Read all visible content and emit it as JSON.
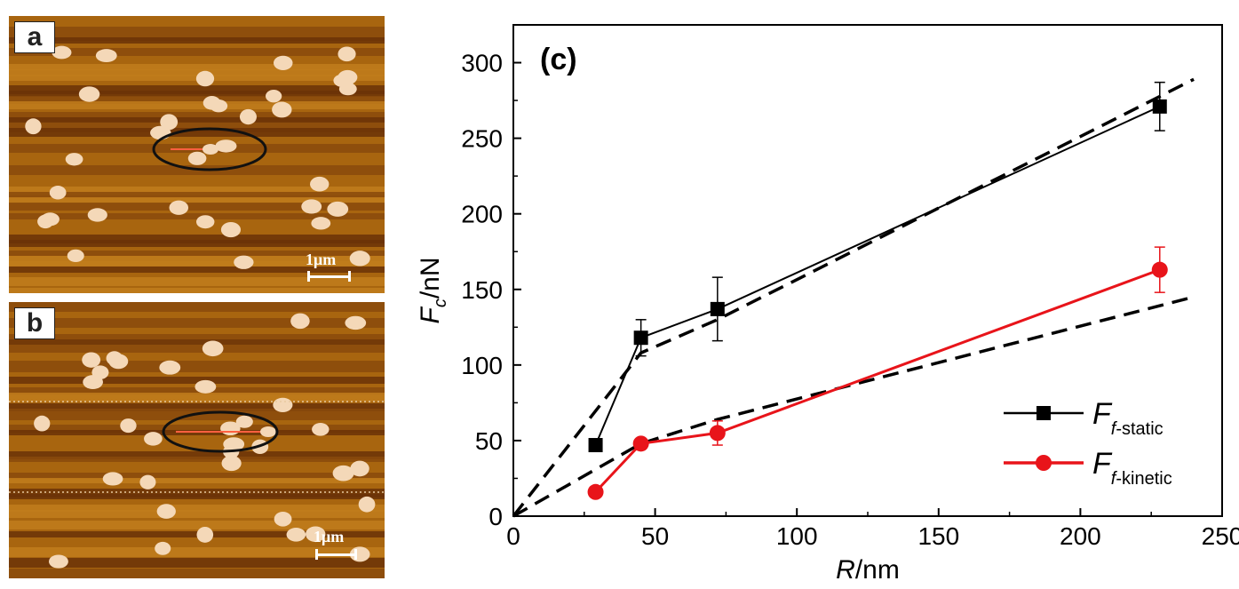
{
  "afm_panels": [
    {
      "label": "a",
      "scale_label": "1μm"
    },
    {
      "label": "b",
      "scale_label": "1μm"
    }
  ],
  "colors": {
    "afm_base": "#a8650f",
    "afm_dark": "#6b3207",
    "particle": "#f4d8b8",
    "static_series": "#000000",
    "kinetic_series": "#e8141a"
  },
  "chart_data": {
    "type": "line",
    "panel_label": "(c)",
    "xlabel": "R/nm",
    "xlabel_parts": {
      "var": "R",
      "unit": "/nm"
    },
    "ylabel": "F_c/nN",
    "ylabel_parts": {
      "var": "F",
      "sub": "c",
      "unit": "/nN"
    },
    "xlim": [
      0,
      250
    ],
    "ylim": [
      0,
      325
    ],
    "xticks": [
      0,
      50,
      100,
      150,
      200,
      250
    ],
    "yticks": [
      0,
      50,
      100,
      150,
      200,
      250,
      300
    ],
    "legend_position": "bottom-right",
    "series": [
      {
        "name": "F_f-static",
        "name_parts": {
          "var": "F",
          "sub": "f-static"
        },
        "marker": "square",
        "color": "#000000",
        "x": [
          29,
          45,
          72,
          228
        ],
        "y": [
          47,
          118,
          137,
          271
        ],
        "err": [
          0,
          12,
          21,
          16
        ]
      },
      {
        "name": "F_f-kinetic",
        "name_parts": {
          "var": "F",
          "sub": "f-kinetic"
        },
        "marker": "circle",
        "color": "#e8141a",
        "x": [
          29,
          45,
          72,
          228
        ],
        "y": [
          16,
          48,
          55,
          163
        ],
        "err": [
          0,
          0,
          8,
          15
        ]
      }
    ],
    "fit_lines": [
      {
        "style": "dashed",
        "color": "#000000",
        "x": [
          0,
          45,
          72,
          240
        ],
        "y": [
          0,
          108,
          130,
          289
        ]
      },
      {
        "style": "dashed",
        "color": "#000000",
        "x": [
          0,
          45,
          72,
          240
        ],
        "y": [
          0,
          48,
          64,
          145
        ]
      }
    ]
  }
}
